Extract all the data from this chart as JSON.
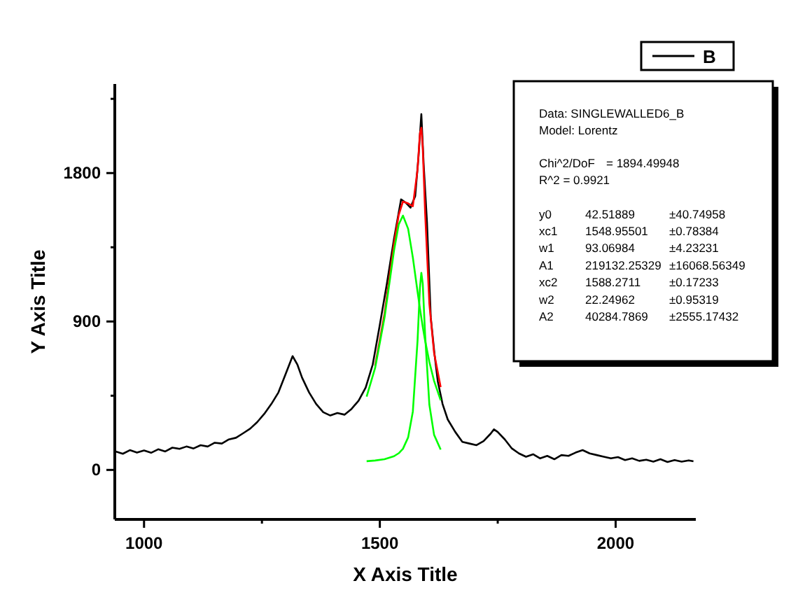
{
  "chart_data": {
    "type": "line",
    "xlabel": "X Axis Title",
    "ylabel": "Y Axis Title",
    "xlim": [
      938,
      2170
    ],
    "ylim": [
      -300,
      2340
    ],
    "xticks": [
      1000,
      {
        "value": 1250,
        "label": null
      },
      1500,
      {
        "value": 1750,
        "label": null
      },
      2000
    ],
    "yticks": [
      0,
      {
        "value": 450,
        "label": null
      },
      900,
      {
        "value": 1350,
        "label": null
      },
      1800,
      {
        "value": 2250,
        "label": null
      }
    ],
    "grid": false,
    "legend": "top",
    "marker": "none",
    "line_style": "solid",
    "series": [
      {
        "name": "B",
        "color": "#000000",
        "x": [
          940,
          955,
          970,
          985,
          1000,
          1015,
          1030,
          1045,
          1060,
          1075,
          1090,
          1105,
          1120,
          1135,
          1150,
          1165,
          1180,
          1195,
          1210,
          1225,
          1240,
          1255,
          1270,
          1285,
          1300,
          1315,
          1325,
          1335,
          1350,
          1365,
          1380,
          1395,
          1410,
          1425,
          1440,
          1455,
          1470,
          1485,
          1500,
          1515,
          1530,
          1545,
          1555,
          1565,
          1575,
          1582,
          1588,
          1593,
          1600,
          1608,
          1616,
          1623,
          1633,
          1644,
          1660,
          1675,
          1690,
          1705,
          1720,
          1735,
          1742,
          1750,
          1765,
          1780,
          1795,
          1810,
          1825,
          1840,
          1855,
          1870,
          1885,
          1900,
          1915,
          1930,
          1945,
          1960,
          1975,
          1990,
          2005,
          2020,
          2035,
          2050,
          2065,
          2080,
          2095,
          2110,
          2125,
          2140,
          2155,
          2165
        ],
        "values": [
          112,
          98,
          120,
          105,
          118,
          104,
          125,
          112,
          135,
          128,
          142,
          130,
          150,
          142,
          165,
          160,
          185,
          195,
          222,
          250,
          290,
          340,
          400,
          470,
          580,
          690,
          640,
          560,
          470,
          400,
          350,
          330,
          345,
          335,
          370,
          420,
          500,
          640,
          880,
          1130,
          1400,
          1640,
          1620,
          1590,
          1660,
          1900,
          2157,
          1850,
          1500,
          925,
          700,
          535,
          400,
          306,
          230,
          170,
          160,
          150,
          175,
          220,
          246,
          230,
          185,
          130,
          100,
          80,
          95,
          70,
          85,
          65,
          90,
          85,
          105,
          120,
          100,
          90,
          80,
          70,
          78,
          60,
          70,
          55,
          62,
          50,
          65,
          48,
          60,
          50,
          58,
          52
        ]
      },
      {
        "color": "#ff0000",
        "x": [
          1490,
          1510,
          1530,
          1540,
          1549,
          1560,
          1570,
          1580,
          1585,
          1588,
          1591,
          1596,
          1605,
          1615,
          1629
        ],
        "values": [
          632,
          947,
          1369,
          1546,
          1627,
          1616,
          1599,
          1822,
          2040,
          2075,
          1955,
          1561,
          1008,
          710,
          502
        ]
      },
      {
        "color": "#00ff00",
        "x": [
          1472,
          1490,
          1510,
          1530,
          1540,
          1549,
          1560,
          1570,
          1580,
          1585,
          1588,
          1591,
          1596,
          1605,
          1615,
          1629
        ],
        "values": [
          444,
          618,
          924,
          1329,
          1488,
          1542,
          1462,
          1288,
          1080,
          980,
          923,
          868,
          784,
          655,
          540,
          422
        ]
      },
      {
        "color": "#00ff00",
        "x": [
          1472,
          1490,
          1510,
          1530,
          1540,
          1549,
          1560,
          1570,
          1580,
          1585,
          1588,
          1591,
          1596,
          1605,
          1615,
          1629
        ],
        "values": [
          53,
          57,
          65,
          83,
          101,
          128,
          197,
          354,
          785,
          1103,
          1195,
          1130,
          820,
          396,
          213,
          123
        ]
      }
    ],
    "annotations": [
      "Data: SINGLEWALLED6_B",
      "Model: Lorentz",
      "Chi^2/DoF\t= 1894.49948",
      "R^2  = 0.9921",
      "y0\t42.51889\t±40.74958",
      "xc1\t1548.95501\t±0.78384",
      "w1\t93.06984\t±4.23231",
      "A1\t219132.25329\t±16068.56349",
      "xc2\t1588.2711\t±0.17233",
      "w2\t22.24962\t±0.95319",
      "A2\t40284.7869\t±2555.17432"
    ]
  }
}
